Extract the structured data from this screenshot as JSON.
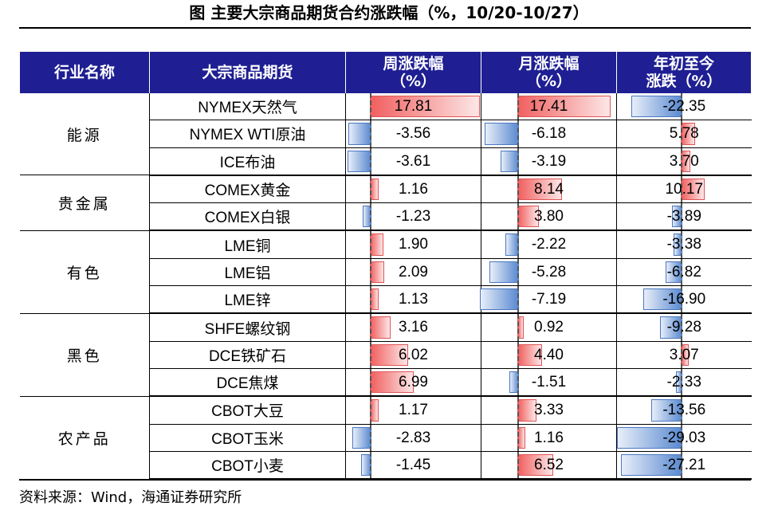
{
  "title": "图    主要大宗商品期货合约涨跌幅（%，10/20-10/27）",
  "headers": {
    "industry": "行业名称",
    "commodity": "大宗商品期货",
    "week": "周涨跌幅\n（%）",
    "month": "月涨跌幅\n（%）",
    "ytd": "年初至今\n涨跌（%）"
  },
  "groups": [
    {
      "industry": "能源",
      "rows": [
        {
          "name": "NYMEX天然气",
          "week": 17.81,
          "month": 17.41,
          "ytd": -22.35
        },
        {
          "name": "NYMEX WTI原油",
          "week": -3.56,
          "month": -6.18,
          "ytd": 5.78
        },
        {
          "name": "ICE布油",
          "week": -3.61,
          "month": -3.19,
          "ytd": 3.7
        }
      ]
    },
    {
      "industry": "贵金属",
      "rows": [
        {
          "name": "COMEX黄金",
          "week": 1.16,
          "month": 8.14,
          "ytd": 10.17
        },
        {
          "name": "COMEX白银",
          "week": -1.23,
          "month": 3.8,
          "ytd": -3.89
        }
      ]
    },
    {
      "industry": "有色",
      "rows": [
        {
          "name": "LME铜",
          "week": 1.9,
          "month": -2.22,
          "ytd": -3.38
        },
        {
          "name": "LME铝",
          "week": 2.09,
          "month": -5.28,
          "ytd": -6.82
        },
        {
          "name": "LME锌",
          "week": 1.13,
          "month": -7.19,
          "ytd": -16.9
        }
      ]
    },
    {
      "industry": "黑色",
      "rows": [
        {
          "name": "SHFE螺纹钢",
          "week": 3.16,
          "month": 0.92,
          "ytd": -9.28
        },
        {
          "name": "DCE铁矿石",
          "week": 6.02,
          "month": 4.4,
          "ytd": 3.07
        },
        {
          "name": "DCE焦煤",
          "week": 6.99,
          "month": -1.51,
          "ytd": -2.33
        }
      ]
    },
    {
      "industry": "农产品",
      "rows": [
        {
          "name": "CBOT大豆",
          "week": 1.17,
          "month": 3.33,
          "ytd": -13.56
        },
        {
          "name": "CBOT玉米",
          "week": -2.83,
          "month": 1.16,
          "ytd": -29.03
        },
        {
          "name": "CBOT小麦",
          "week": -1.45,
          "month": 6.52,
          "ytd": -27.21
        }
      ]
    }
  ],
  "source": "资料来源：Wind，海通证券研究所",
  "colors": {
    "header_bg": "#1f1f93",
    "positive": "#f15f5f",
    "negative": "#5a8ad0"
  }
}
